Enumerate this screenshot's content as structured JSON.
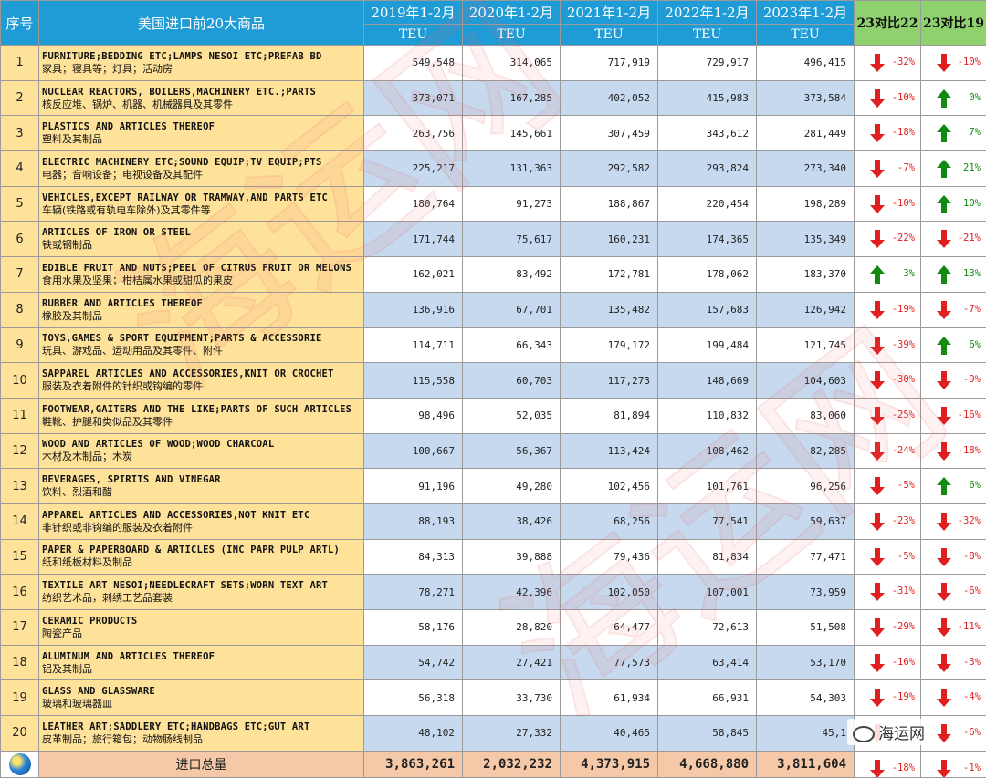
{
  "header": {
    "idx": "序号",
    "name": "美国进口前20大商品",
    "years": [
      "2019年1-2月",
      "2020年1-2月",
      "2021年1-2月",
      "2022年1-2月",
      "2023年1-2月"
    ],
    "unit": "TEU",
    "cmp22": "23对比22",
    "cmp19": "23对比19"
  },
  "rows": [
    {
      "idx": "1",
      "en": "FURNITURE;BEDDING ETC;LAMPS NESOI ETC;PREFAB BD",
      "zh": "家具；寝具等；灯具；活动房",
      "v": [
        "549,548",
        "314,065",
        "717,919",
        "729,917",
        "496,415"
      ],
      "c22": "-32%",
      "d22": "down",
      "c19": "-10%",
      "d19": "down"
    },
    {
      "idx": "2",
      "en": "NUCLEAR REACTORS, BOILERS,MACHINERY ETC.;PARTS",
      "zh": "核反应堆、锅炉、机器、机械器具及其零件",
      "v": [
        "373,071",
        "167,285",
        "402,052",
        "415,983",
        "373,584"
      ],
      "c22": "-10%",
      "d22": "down",
      "c19": "0%",
      "d19": "up"
    },
    {
      "idx": "3",
      "en": "PLASTICS AND ARTICLES THEREOF",
      "zh": "塑料及其制品",
      "v": [
        "263,756",
        "145,661",
        "307,459",
        "343,612",
        "281,449"
      ],
      "c22": "-18%",
      "d22": "down",
      "c19": "7%",
      "d19": "up"
    },
    {
      "idx": "4",
      "en": "ELECTRIC MACHINERY ETC;SOUND EQUIP;TV EQUIP;PTS",
      "zh": "电器；音响设备；电视设备及其配件",
      "v": [
        "225,217",
        "131,363",
        "292,582",
        "293,824",
        "273,340"
      ],
      "c22": "-7%",
      "d22": "down",
      "c19": "21%",
      "d19": "up"
    },
    {
      "idx": "5",
      "en": "VEHICLES,EXCEPT RAILWAY OR TRAMWAY,AND PARTS ETC",
      "zh": "车辆(铁路或有轨电车除外)及其零件等",
      "v": [
        "180,764",
        "91,273",
        "188,867",
        "220,454",
        "198,289"
      ],
      "c22": "-10%",
      "d22": "down",
      "c19": "10%",
      "d19": "up"
    },
    {
      "idx": "6",
      "en": "ARTICLES OF IRON OR STEEL",
      "zh": "铁或钢制品",
      "v": [
        "171,744",
        "75,617",
        "160,231",
        "174,365",
        "135,349"
      ],
      "c22": "-22%",
      "d22": "down",
      "c19": "-21%",
      "d19": "down"
    },
    {
      "idx": "7",
      "en": "EDIBLE FRUIT AND NUTS;PEEL OF CITRUS FRUIT OR MELONS",
      "zh": "食用水果及坚果；柑桔属水果或甜瓜的果皮",
      "v": [
        "162,021",
        "83,492",
        "172,781",
        "178,062",
        "183,370"
      ],
      "c22": "3%",
      "d22": "up",
      "c19": "13%",
      "d19": "up"
    },
    {
      "idx": "8",
      "en": "RUBBER AND ARTICLES THEREOF",
      "zh": "橡胶及其制品",
      "v": [
        "136,916",
        "67,701",
        "135,482",
        "157,683",
        "126,942"
      ],
      "c22": "-19%",
      "d22": "down",
      "c19": "-7%",
      "d19": "down"
    },
    {
      "idx": "9",
      "en": "TOYS,GAMES & SPORT EQUIPMENT;PARTS & ACCESSORIE",
      "zh": "玩具、游戏品、运动用品及其零件、附件",
      "v": [
        "114,711",
        "66,343",
        "179,172",
        "199,484",
        "121,745"
      ],
      "c22": "-39%",
      "d22": "down",
      "c19": "6%",
      "d19": "up"
    },
    {
      "idx": "10",
      "en": "SAPPAREL ARTICLES AND ACCESSORIES,KNIT OR CROCHET",
      "zh": "服装及衣着附件的针织或钩编的零件",
      "v": [
        "115,558",
        "60,703",
        "117,273",
        "148,669",
        "104,603"
      ],
      "c22": "-30%",
      "d22": "down",
      "c19": "-9%",
      "d19": "down"
    },
    {
      "idx": "11",
      "en": "FOOTWEAR,GAITERS AND THE LIKE;PARTS OF SUCH ARTICLES",
      "zh": "鞋靴、护腿和类似品及其零件",
      "v": [
        "98,496",
        "52,035",
        "81,894",
        "110,832",
        "83,060"
      ],
      "c22": "-25%",
      "d22": "down",
      "c19": "-16%",
      "d19": "down"
    },
    {
      "idx": "12",
      "en": "WOOD AND ARTICLES OF WOOD;WOOD CHARCOAL",
      "zh": "木材及木制品；木炭",
      "v": [
        "100,667",
        "56,367",
        "113,424",
        "108,462",
        "82,285"
      ],
      "c22": "-24%",
      "d22": "down",
      "c19": "-18%",
      "d19": "down"
    },
    {
      "idx": "13",
      "en": "BEVERAGES, SPIRITS AND VINEGAR",
      "zh": "饮料、烈酒和醋",
      "v": [
        "91,196",
        "49,280",
        "102,456",
        "101,761",
        "96,256"
      ],
      "c22": "-5%",
      "d22": "down",
      "c19": "6%",
      "d19": "up"
    },
    {
      "idx": "14",
      "en": "APPAREL ARTICLES AND ACCESSORIES,NOT KNIT ETC",
      "zh": "非针织或非钩编的服装及衣着附件",
      "v": [
        "88,193",
        "38,426",
        "68,256",
        "77,541",
        "59,637"
      ],
      "c22": "-23%",
      "d22": "down",
      "c19": "-32%",
      "d19": "down"
    },
    {
      "idx": "15",
      "en": "PAPER & PAPERBOARD & ARTICLES (INC PAPR PULP ARTL)",
      "zh": "纸和纸板材料及制品",
      "v": [
        "84,313",
        "39,888",
        "79,436",
        "81,834",
        "77,471"
      ],
      "c22": "-5%",
      "d22": "down",
      "c19": "-8%",
      "d19": "down"
    },
    {
      "idx": "16",
      "en": "TEXTILE ART NESOI;NEEDLECRAFT SETS;WORN TEXT ART",
      "zh": "纺织艺术品，刺绣工艺品套装",
      "v": [
        "78,271",
        "42,396",
        "102,050",
        "107,001",
        "73,959"
      ],
      "c22": "-31%",
      "d22": "down",
      "c19": "-6%",
      "d19": "down"
    },
    {
      "idx": "17",
      "en": "CERAMIC PRODUCTS",
      "zh": "陶瓷产品",
      "v": [
        "58,176",
        "28,820",
        "64,477",
        "72,613",
        "51,508"
      ],
      "c22": "-29%",
      "d22": "down",
      "c19": "-11%",
      "d19": "down"
    },
    {
      "idx": "18",
      "en": "ALUMINUM AND ARTICLES THEREOF",
      "zh": "铝及其制品",
      "v": [
        "54,742",
        "27,421",
        "77,573",
        "63,414",
        "53,170"
      ],
      "c22": "-16%",
      "d22": "down",
      "c19": "-3%",
      "d19": "down"
    },
    {
      "idx": "19",
      "en": "GLASS AND GLASSWARE",
      "zh": "玻璃和玻璃器皿",
      "v": [
        "56,318",
        "33,730",
        "61,934",
        "66,931",
        "54,303"
      ],
      "c22": "-19%",
      "d22": "down",
      "c19": "-4%",
      "d19": "down"
    },
    {
      "idx": "20",
      "en": "LEATHER ART;SADDLERY ETC;HANDBAGS ETC;GUT ART",
      "zh": "皮革制品；旅行箱包；动物肠线制品",
      "v": [
        "48,102",
        "27,332",
        "40,465",
        "58,845",
        "45,1"
      ],
      "c22": "",
      "d22": "down",
      "c19": "-6%",
      "d19": "down"
    }
  ],
  "total": {
    "label": "进口总量",
    "v": [
      "3,863,261",
      "2,032,232",
      "4,373,915",
      "4,668,880",
      "3,811,604"
    ],
    "c22": "-18%",
    "d22": "down",
    "c19": "-1%",
    "d19": "down"
  },
  "watermark_text": "海运网",
  "wechat_label": "海运网",
  "colors": {
    "header": "#1f9bd6",
    "compare_header": "#8ed16e",
    "name_col": "#ffe29a",
    "alt_row": "#c6d9ee",
    "total_row": "#f5c9a8",
    "down": "#e02020",
    "up": "#128a12"
  }
}
